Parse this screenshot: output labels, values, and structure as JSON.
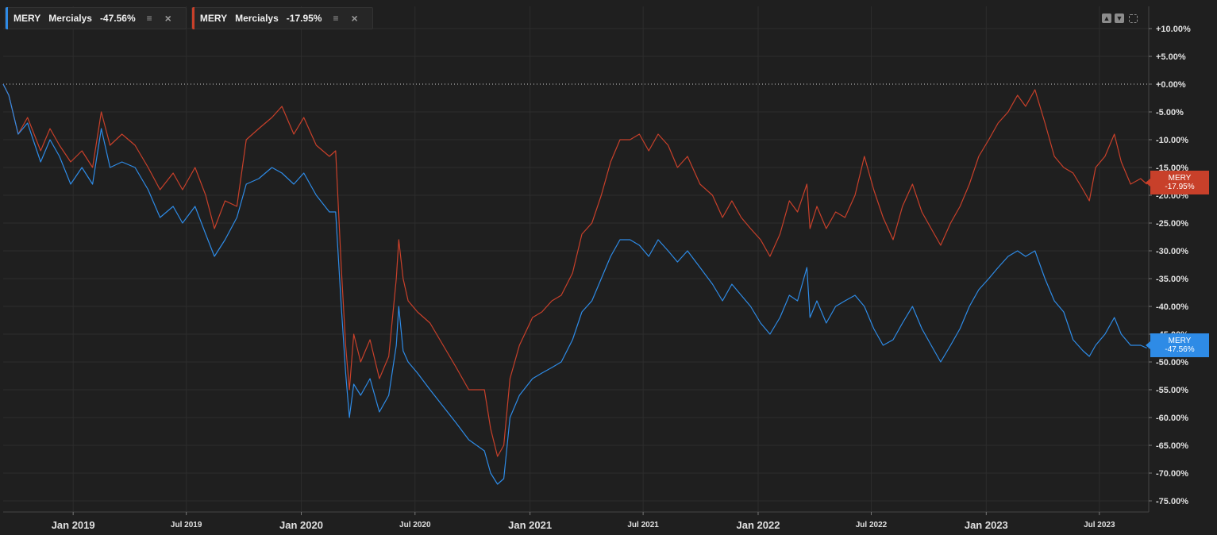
{
  "legend": [
    {
      "ticker": "MERY",
      "name": "Mercialys",
      "change": "-47.56%",
      "color": "#2e8be6"
    },
    {
      "ticker": "MERY",
      "name": "Mercialys",
      "change": "-17.95%",
      "color": "#c8402a"
    }
  ],
  "icons": {
    "layers": "layers-icon",
    "close": "close-icon",
    "move_up": "arrow-up-icon",
    "move_down": "arrow-down-icon",
    "fullscreen": "expand-icon"
  },
  "tags": {
    "red": {
      "line1": "MERY",
      "line2": "-17.95%"
    },
    "blue": {
      "line1": "MERY",
      "line2": "-47.56%"
    }
  },
  "colors": {
    "background": "#1f1f1f",
    "grid": "#2d2d2d",
    "baseline": "#cfcfcf",
    "series_blue": "#2e8be6",
    "series_red": "#c8402a"
  },
  "chart_data": {
    "type": "line",
    "y_unit": "percent change",
    "ylim": [
      -77,
      14
    ],
    "xlim": [
      "2018-09-11",
      "2023-09-18"
    ],
    "grid": true,
    "legend_position": "top-left",
    "y_ticks": [
      10,
      5,
      0,
      -5,
      -10,
      -15,
      -20,
      -25,
      -30,
      -35,
      -40,
      -45,
      -50,
      -55,
      -60,
      -65,
      -70,
      -75
    ],
    "y_tick_labels": [
      "+10.00%",
      "+5.00%",
      "+0.00%",
      "-5.00%",
      "-10.00%",
      "-15.00%",
      "-20.00%",
      "-25.00%",
      "-30.00%",
      "-35.00%",
      "-40.00%",
      "-45.00%",
      "-50.00%",
      "-55.00%",
      "-60.00%",
      "-65.00%",
      "-70.00%",
      "-75.00%"
    ],
    "x_ticks": [
      "2019-01-01",
      "2019-07-01",
      "2020-01-01",
      "2020-07-01",
      "2021-01-01",
      "2021-07-01",
      "2022-01-01",
      "2022-07-01",
      "2023-01-01",
      "2023-07-01"
    ],
    "x_tick_labels": [
      "Jan 2019",
      "Jul 2019",
      "Jan 2020",
      "Jul 2020",
      "Jan 2021",
      "Jul 2021",
      "Jan 2022",
      "Jul 2022",
      "Jan 2023",
      "Jul 2023"
    ],
    "x_tick_major": [
      true,
      false,
      true,
      false,
      true,
      false,
      true,
      false,
      true,
      false
    ],
    "series": [
      {
        "color": "#c8402a",
        "points": [
          [
            "2018-09-11",
            0
          ],
          [
            "2018-09-20",
            -2
          ],
          [
            "2018-10-05",
            -9
          ],
          [
            "2018-10-20",
            -6
          ],
          [
            "2018-11-10",
            -12
          ],
          [
            "2018-11-25",
            -8
          ],
          [
            "2018-12-10",
            -11
          ],
          [
            "2018-12-28",
            -14
          ],
          [
            "2019-01-15",
            -12
          ],
          [
            "2019-02-01",
            -15
          ],
          [
            "2019-02-15",
            -5
          ],
          [
            "2019-03-01",
            -11
          ],
          [
            "2019-03-20",
            -9
          ],
          [
            "2019-04-10",
            -11
          ],
          [
            "2019-05-01",
            -15
          ],
          [
            "2019-05-20",
            -19
          ],
          [
            "2019-06-10",
            -16
          ],
          [
            "2019-06-25",
            -19
          ],
          [
            "2019-07-15",
            -15
          ],
          [
            "2019-08-01",
            -20
          ],
          [
            "2019-08-15",
            -26
          ],
          [
            "2019-09-01",
            -21
          ],
          [
            "2019-09-20",
            -22
          ],
          [
            "2019-10-05",
            -10
          ],
          [
            "2019-10-25",
            -8
          ],
          [
            "2019-11-15",
            -6
          ],
          [
            "2019-12-01",
            -4
          ],
          [
            "2019-12-20",
            -9
          ],
          [
            "2020-01-05",
            -6
          ],
          [
            "2020-01-25",
            -11
          ],
          [
            "2020-02-15",
            -13
          ],
          [
            "2020-02-25",
            -12
          ],
          [
            "2020-03-05",
            -33
          ],
          [
            "2020-03-12",
            -47
          ],
          [
            "2020-03-18",
            -55
          ],
          [
            "2020-03-25",
            -45
          ],
          [
            "2020-04-05",
            -50
          ],
          [
            "2020-04-20",
            -46
          ],
          [
            "2020-05-05",
            -53
          ],
          [
            "2020-05-20",
            -49
          ],
          [
            "2020-06-01",
            -35
          ],
          [
            "2020-06-05",
            -28
          ],
          [
            "2020-06-12",
            -35
          ],
          [
            "2020-06-20",
            -39
          ],
          [
            "2020-07-05",
            -41
          ],
          [
            "2020-07-25",
            -43
          ],
          [
            "2020-08-15",
            -47
          ],
          [
            "2020-09-05",
            -51
          ],
          [
            "2020-09-25",
            -55
          ],
          [
            "2020-10-20",
            -55
          ],
          [
            "2020-10-30",
            -62
          ],
          [
            "2020-11-10",
            -67
          ],
          [
            "2020-11-20",
            -65
          ],
          [
            "2020-11-30",
            -53
          ],
          [
            "2020-12-15",
            -47
          ],
          [
            "2021-01-05",
            -42
          ],
          [
            "2021-01-20",
            -41
          ],
          [
            "2021-02-05",
            -39
          ],
          [
            "2021-02-20",
            -38
          ],
          [
            "2021-03-10",
            -34
          ],
          [
            "2021-03-25",
            -27
          ],
          [
            "2021-04-10",
            -25
          ],
          [
            "2021-04-25",
            -20
          ],
          [
            "2021-05-10",
            -14
          ],
          [
            "2021-05-25",
            -10
          ],
          [
            "2021-06-10",
            -10
          ],
          [
            "2021-06-25",
            -9
          ],
          [
            "2021-07-10",
            -12
          ],
          [
            "2021-07-25",
            -9
          ],
          [
            "2021-08-10",
            -11
          ],
          [
            "2021-08-25",
            -15
          ],
          [
            "2021-09-10",
            -13
          ],
          [
            "2021-09-30",
            -18
          ],
          [
            "2021-10-20",
            -20
          ],
          [
            "2021-11-05",
            -24
          ],
          [
            "2021-11-20",
            -21
          ],
          [
            "2021-12-05",
            -24
          ],
          [
            "2021-12-20",
            -26
          ],
          [
            "2022-01-05",
            -28
          ],
          [
            "2022-01-20",
            -31
          ],
          [
            "2022-02-05",
            -27
          ],
          [
            "2022-02-20",
            -21
          ],
          [
            "2022-03-05",
            -23
          ],
          [
            "2022-03-20",
            -18
          ],
          [
            "2022-03-25",
            -26
          ],
          [
            "2022-04-05",
            -22
          ],
          [
            "2022-04-20",
            -26
          ],
          [
            "2022-05-05",
            -23
          ],
          [
            "2022-05-20",
            -24
          ],
          [
            "2022-06-05",
            -20
          ],
          [
            "2022-06-20",
            -13
          ],
          [
            "2022-07-05",
            -19
          ],
          [
            "2022-07-20",
            -24
          ],
          [
            "2022-08-05",
            -28
          ],
          [
            "2022-08-20",
            -22
          ],
          [
            "2022-09-05",
            -18
          ],
          [
            "2022-09-20",
            -23
          ],
          [
            "2022-10-05",
            -26
          ],
          [
            "2022-10-20",
            -29
          ],
          [
            "2022-11-05",
            -25
          ],
          [
            "2022-11-20",
            -22
          ],
          [
            "2022-12-05",
            -18
          ],
          [
            "2022-12-20",
            -13
          ],
          [
            "2023-01-05",
            -10
          ],
          [
            "2023-01-20",
            -7
          ],
          [
            "2023-02-05",
            -5
          ],
          [
            "2023-02-20",
            -2
          ],
          [
            "2023-03-05",
            -4
          ],
          [
            "2023-03-20",
            -1
          ],
          [
            "2023-04-05",
            -7
          ],
          [
            "2023-04-20",
            -13
          ],
          [
            "2023-05-05",
            -15
          ],
          [
            "2023-05-20",
            -16
          ],
          [
            "2023-06-05",
            -19
          ],
          [
            "2023-06-15",
            -21
          ],
          [
            "2023-06-25",
            -15
          ],
          [
            "2023-07-10",
            -13
          ],
          [
            "2023-07-25",
            -9
          ],
          [
            "2023-08-05",
            -14
          ],
          [
            "2023-08-20",
            -18
          ],
          [
            "2023-09-05",
            -17
          ],
          [
            "2023-09-15",
            -18
          ]
        ]
      },
      {
        "color": "#2e8be6",
        "points": [
          [
            "2018-09-11",
            0
          ],
          [
            "2018-09-20",
            -2
          ],
          [
            "2018-10-05",
            -9
          ],
          [
            "2018-10-20",
            -7
          ],
          [
            "2018-11-10",
            -14
          ],
          [
            "2018-11-25",
            -10
          ],
          [
            "2018-12-10",
            -13
          ],
          [
            "2018-12-28",
            -18
          ],
          [
            "2019-01-15",
            -15
          ],
          [
            "2019-02-01",
            -18
          ],
          [
            "2019-02-15",
            -8
          ],
          [
            "2019-03-01",
            -15
          ],
          [
            "2019-03-20",
            -14
          ],
          [
            "2019-04-10",
            -15
          ],
          [
            "2019-05-01",
            -19
          ],
          [
            "2019-05-20",
            -24
          ],
          [
            "2019-06-10",
            -22
          ],
          [
            "2019-06-25",
            -25
          ],
          [
            "2019-07-15",
            -22
          ],
          [
            "2019-08-01",
            -27
          ],
          [
            "2019-08-15",
            -31
          ],
          [
            "2019-09-01",
            -28
          ],
          [
            "2019-09-20",
            -24
          ],
          [
            "2019-10-05",
            -18
          ],
          [
            "2019-10-25",
            -17
          ],
          [
            "2019-11-15",
            -15
          ],
          [
            "2019-12-01",
            -16
          ],
          [
            "2019-12-20",
            -18
          ],
          [
            "2020-01-05",
            -16
          ],
          [
            "2020-01-25",
            -20
          ],
          [
            "2020-02-15",
            -23
          ],
          [
            "2020-02-25",
            -23
          ],
          [
            "2020-03-05",
            -40
          ],
          [
            "2020-03-12",
            -52
          ],
          [
            "2020-03-18",
            -60
          ],
          [
            "2020-03-25",
            -54
          ],
          [
            "2020-04-05",
            -56
          ],
          [
            "2020-04-20",
            -53
          ],
          [
            "2020-05-05",
            -59
          ],
          [
            "2020-05-20",
            -56
          ],
          [
            "2020-06-01",
            -47
          ],
          [
            "2020-06-05",
            -40
          ],
          [
            "2020-06-12",
            -48
          ],
          [
            "2020-06-20",
            -50
          ],
          [
            "2020-07-05",
            -52
          ],
          [
            "2020-07-25",
            -55
          ],
          [
            "2020-08-15",
            -58
          ],
          [
            "2020-09-05",
            -61
          ],
          [
            "2020-09-25",
            -64
          ],
          [
            "2020-10-20",
            -66
          ],
          [
            "2020-10-30",
            -70
          ],
          [
            "2020-11-10",
            -72
          ],
          [
            "2020-11-20",
            -71
          ],
          [
            "2020-11-30",
            -60
          ],
          [
            "2020-12-15",
            -56
          ],
          [
            "2021-01-05",
            -53
          ],
          [
            "2021-01-20",
            -52
          ],
          [
            "2021-02-05",
            -51
          ],
          [
            "2021-02-20",
            -50
          ],
          [
            "2021-03-10",
            -46
          ],
          [
            "2021-03-25",
            -41
          ],
          [
            "2021-04-10",
            -39
          ],
          [
            "2021-04-25",
            -35
          ],
          [
            "2021-05-10",
            -31
          ],
          [
            "2021-05-25",
            -28
          ],
          [
            "2021-06-10",
            -28
          ],
          [
            "2021-06-25",
            -29
          ],
          [
            "2021-07-10",
            -31
          ],
          [
            "2021-07-25",
            -28
          ],
          [
            "2021-08-10",
            -30
          ],
          [
            "2021-08-25",
            -32
          ],
          [
            "2021-09-10",
            -30
          ],
          [
            "2021-09-30",
            -33
          ],
          [
            "2021-10-20",
            -36
          ],
          [
            "2021-11-05",
            -39
          ],
          [
            "2021-11-20",
            -36
          ],
          [
            "2021-12-05",
            -38
          ],
          [
            "2021-12-20",
            -40
          ],
          [
            "2022-01-05",
            -43
          ],
          [
            "2022-01-20",
            -45
          ],
          [
            "2022-02-05",
            -42
          ],
          [
            "2022-02-20",
            -38
          ],
          [
            "2022-03-05",
            -39
          ],
          [
            "2022-03-20",
            -33
          ],
          [
            "2022-03-25",
            -42
          ],
          [
            "2022-04-05",
            -39
          ],
          [
            "2022-04-20",
            -43
          ],
          [
            "2022-05-05",
            -40
          ],
          [
            "2022-05-20",
            -39
          ],
          [
            "2022-06-05",
            -38
          ],
          [
            "2022-06-20",
            -40
          ],
          [
            "2022-07-05",
            -44
          ],
          [
            "2022-07-20",
            -47
          ],
          [
            "2022-08-05",
            -46
          ],
          [
            "2022-08-20",
            -43
          ],
          [
            "2022-09-05",
            -40
          ],
          [
            "2022-09-20",
            -44
          ],
          [
            "2022-10-05",
            -47
          ],
          [
            "2022-10-20",
            -50
          ],
          [
            "2022-11-05",
            -47
          ],
          [
            "2022-11-20",
            -44
          ],
          [
            "2022-12-05",
            -40
          ],
          [
            "2022-12-20",
            -37
          ],
          [
            "2023-01-05",
            -35
          ],
          [
            "2023-01-20",
            -33
          ],
          [
            "2023-02-05",
            -31
          ],
          [
            "2023-02-20",
            -30
          ],
          [
            "2023-03-05",
            -31
          ],
          [
            "2023-03-20",
            -30
          ],
          [
            "2023-04-05",
            -35
          ],
          [
            "2023-04-20",
            -39
          ],
          [
            "2023-05-05",
            -41
          ],
          [
            "2023-05-20",
            -46
          ],
          [
            "2023-06-05",
            -48
          ],
          [
            "2023-06-15",
            -49
          ],
          [
            "2023-06-25",
            -47
          ],
          [
            "2023-07-10",
            -45
          ],
          [
            "2023-07-25",
            -42
          ],
          [
            "2023-08-05",
            -45
          ],
          [
            "2023-08-20",
            -47
          ],
          [
            "2023-09-05",
            -47
          ],
          [
            "2023-09-15",
            -47.5
          ]
        ]
      }
    ]
  }
}
